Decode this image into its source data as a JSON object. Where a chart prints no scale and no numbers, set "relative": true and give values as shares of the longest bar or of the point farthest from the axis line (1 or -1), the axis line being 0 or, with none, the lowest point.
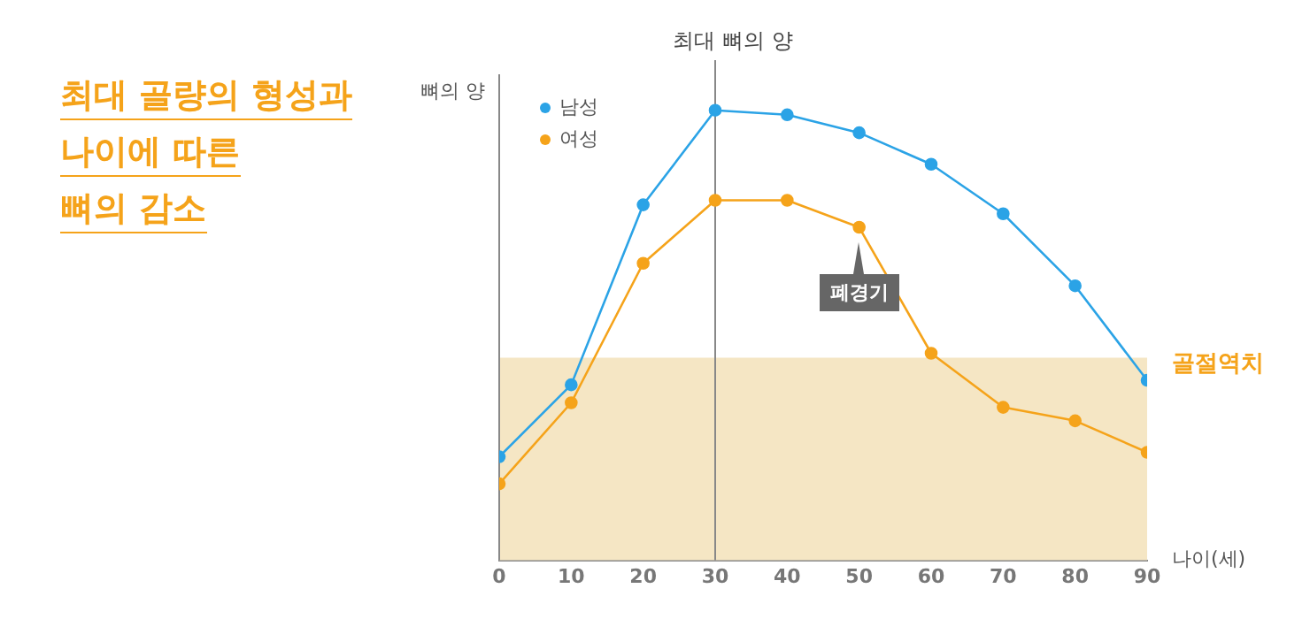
{
  "chart_data": {
    "type": "line",
    "title": "최대 골량의 형성과\n나이에 따른\n뼈의 감소",
    "xlabel": "나이(세)",
    "ylabel": "뼈의 양",
    "relative": true,
    "x": [
      0,
      10,
      20,
      30,
      40,
      50,
      60,
      70,
      80,
      90
    ],
    "xlim": [
      0,
      90
    ],
    "xticks": [
      0,
      10,
      20,
      30,
      40,
      50,
      60,
      70,
      80,
      90
    ],
    "series": [
      {
        "name": "남성",
        "color": "#2ba3e6",
        "values": [
          0.23,
          0.39,
          0.79,
          1,
          0.99,
          0.95,
          0.88,
          0.77,
          0.61,
          0.4
        ]
      },
      {
        "name": "여성",
        "color": "#f5a31a",
        "values": [
          0.17,
          0.35,
          0.66,
          0.8,
          0.8,
          0.74,
          0.46,
          0.34,
          0.31,
          0.24
        ]
      }
    ],
    "ref_lines": [
      {
        "axis": "x",
        "value": 30,
        "label": "최대 뼈의 양",
        "color": "#888888"
      }
    ],
    "bands": [
      {
        "axis": "y",
        "from": 0,
        "to": 0.45,
        "label": "골절역치",
        "color": "#f5e6c4"
      }
    ],
    "annotations": [
      {
        "text": "폐경기",
        "x": 50,
        "y": 0.74
      }
    ],
    "marker": "circle",
    "line_style": "solid",
    "grid": false,
    "legend": "top left"
  }
}
